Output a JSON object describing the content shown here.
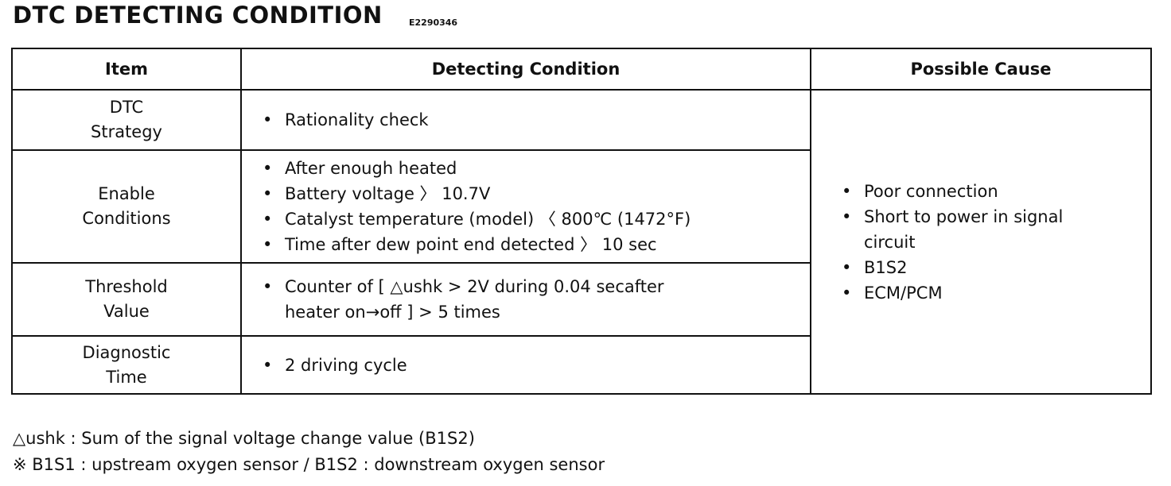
{
  "header": {
    "title": "DTC DETECTING CONDITION",
    "code": "E2290346"
  },
  "table": {
    "columns": [
      "Item",
      "Detecting Condition",
      "Possible Cause"
    ],
    "rows": [
      {
        "item": [
          "DTC",
          "Strategy"
        ],
        "conditions": [
          [
            "Rationality check"
          ]
        ]
      },
      {
        "item": [
          "Enable",
          "Conditions"
        ],
        "conditions": [
          [
            "After enough heated"
          ],
          [
            "Battery voltage 〉 10.7V"
          ],
          [
            "Catalyst temperature (model) 〈 800℃ (1472°F)"
          ],
          [
            "Time after dew point end detected 〉 10 sec"
          ]
        ]
      },
      {
        "item": [
          "Threshold",
          "Value"
        ],
        "conditions": [
          [
            "Counter of [ △ushk > 2V during 0.04 secafter",
            "heater on→off ] > 5 times"
          ]
        ]
      },
      {
        "item": [
          "Diagnostic",
          "Time"
        ],
        "conditions": [
          [
            "2 driving cycle"
          ]
        ]
      }
    ],
    "causes": [
      [
        "Poor connection"
      ],
      [
        "Short to power in signal",
        "circuit"
      ],
      [
        "B1S2"
      ],
      [
        "ECM/PCM"
      ]
    ]
  },
  "notes": [
    "△ushk : Sum of the signal voltage change value (B1S2)",
    "※ B1S1 : upstream oxygen sensor / B1S2 : downstream oxygen sensor"
  ]
}
